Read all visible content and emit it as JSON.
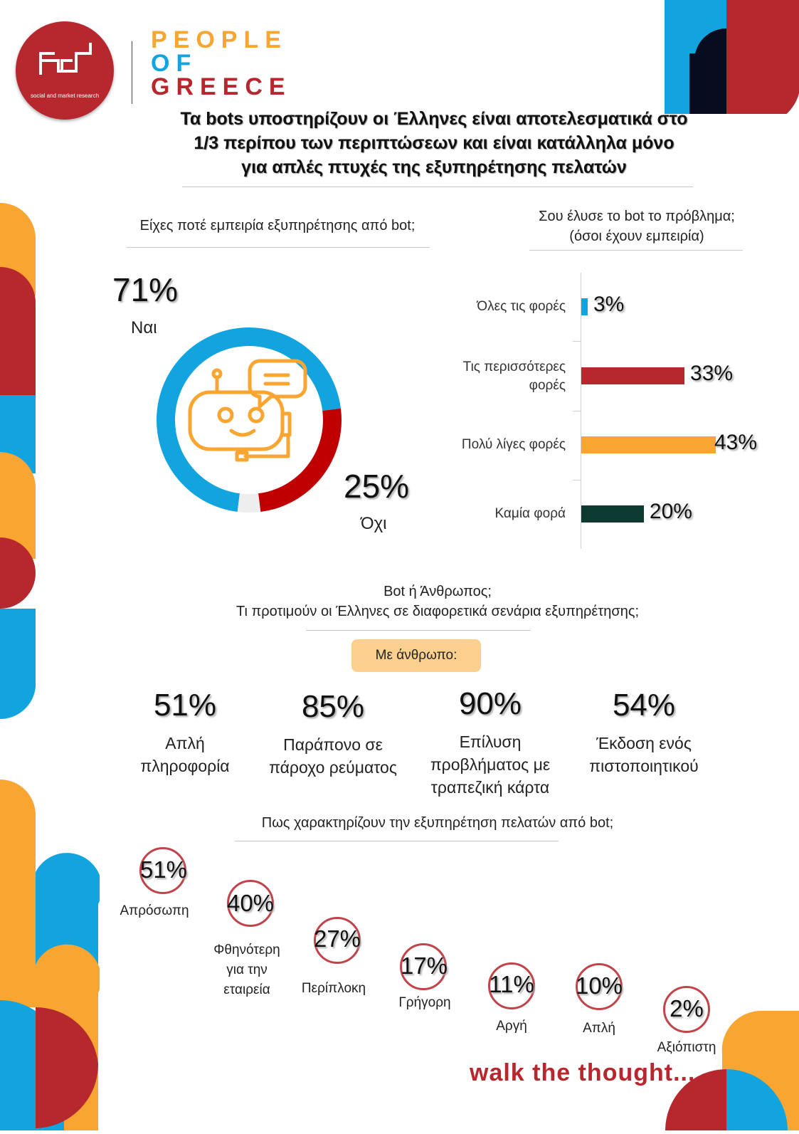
{
  "brand": {
    "logo_text": "social and market research",
    "people_of_greece": [
      "PEOPLE",
      "OF",
      "GREECE"
    ],
    "tagline": "walk the thought..."
  },
  "colors": {
    "blue": "#12a4df",
    "red": "#b7282e",
    "orange": "#f8a532",
    "dark_green": "#0d3a33",
    "navy": "#070d1e"
  },
  "title": [
    "Τα bots υποστηρίζουν οι Έλληνες είναι αποτελεσματικά στο",
    "1/3 περίπου των περιπτώσεων και είναι κατάλληλα μόνο",
    "για απλές πτυχές της εξυπηρέτησης πελατών"
  ],
  "donut": {
    "question": "Είχες ποτέ εμπειρία εξυπηρέτησης από bot;",
    "yes_value": "71%",
    "yes_label": "Ναι",
    "no_value": "25%",
    "no_label": "Όχι"
  },
  "bars": {
    "question": [
      "Σου έλυσε το bot το πρόβλημα;",
      "(όσοι έχουν εμπειρία)"
    ]
  },
  "preference": {
    "question": [
      "Bot ή Άνθρωπος;",
      "Τι προτιμούν οι Έλληνες σε διαφορετικά σενάρια εξυπηρέτησης;"
    ],
    "pill": "Με άνθρωπο:",
    "items": [
      {
        "value": "51%",
        "label": [
          "Απλή",
          "πληροφορία"
        ]
      },
      {
        "value": "85%",
        "label": [
          "Παράπονο σε",
          "πάροχο ρεύματος"
        ]
      },
      {
        "value": "90%",
        "label": [
          "Επίλυση",
          "προβλήματος με",
          "τραπεζική κάρτα"
        ]
      },
      {
        "value": "54%",
        "label": [
          "Έκδοση ενός",
          "πιστοποιητικού"
        ]
      }
    ]
  },
  "traits": {
    "question": "Πως χαρακτηρίζουν την εξυπηρέτηση πελατών από bot;",
    "items": [
      {
        "value": "51%",
        "label": [
          "Απρόσωπη"
        ]
      },
      {
        "value": "40%",
        "label": [
          "Φθηνότερη",
          "για την",
          "εταιρεία"
        ]
      },
      {
        "value": "27%",
        "label": [
          "Περίπλοκη"
        ]
      },
      {
        "value": "17%",
        "label": [
          "Γρήγορη"
        ]
      },
      {
        "value": "11%",
        "label": [
          "Αργή"
        ]
      },
      {
        "value": "10%",
        "label": [
          "Απλή"
        ]
      },
      {
        "value": "2%",
        "label": [
          "Αξιόπιστη"
        ]
      }
    ]
  },
  "chart_data": [
    {
      "type": "pie",
      "title": "Είχες ποτέ εμπειρία εξυπηρέτησης από bot;",
      "categories": [
        "Ναι",
        "Όχι",
        ""
      ],
      "values": [
        71,
        25,
        4
      ],
      "colors": [
        "#12a4df",
        "#c00000",
        "#eeeeee"
      ]
    },
    {
      "type": "bar",
      "orientation": "horizontal",
      "title": "Σου έλυσε το bot το πρόβλημα; (όσοι έχουν εμπειρία)",
      "categories": [
        "Όλες τις φορές",
        "Τις περισσότερες φορές",
        "Πολύ λίγες φορές",
        "Καμία φορά"
      ],
      "values": [
        3,
        33,
        43,
        20
      ],
      "value_labels": [
        "3%",
        "33%",
        "43%",
        "20%"
      ],
      "colors": [
        "#12a4df",
        "#b7282e",
        "#f8a532",
        "#0d3a33"
      ],
      "xlim": [
        0,
        43
      ]
    }
  ]
}
